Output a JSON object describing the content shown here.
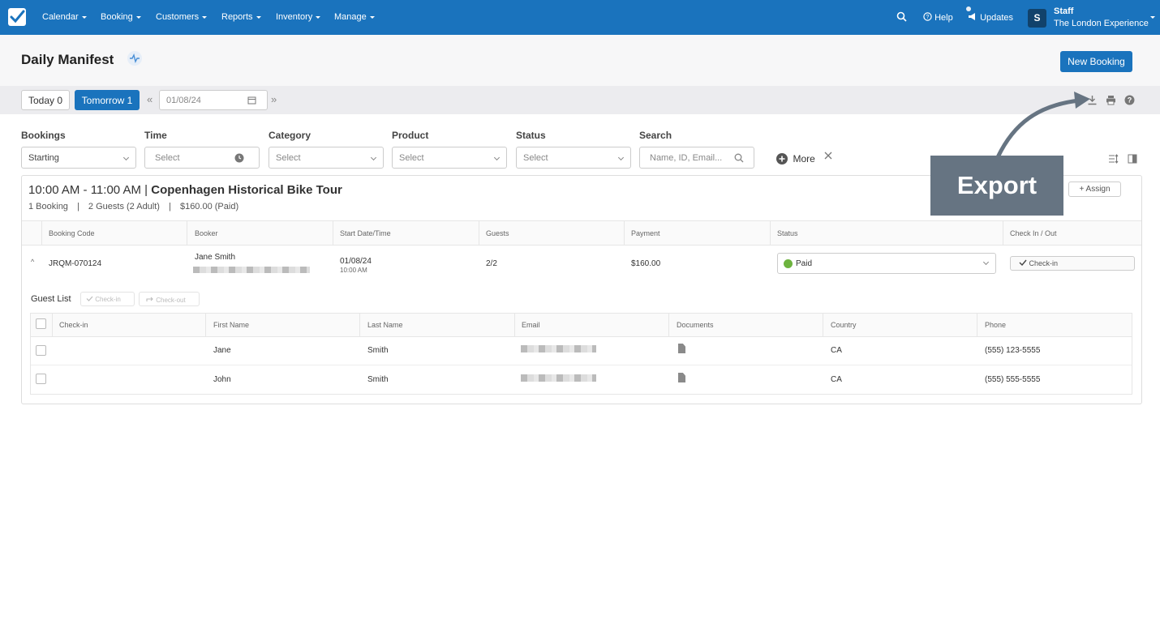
{
  "nav": {
    "menus": [
      "Calendar",
      "Booking",
      "Customers",
      "Reports",
      "Inventory",
      "Manage"
    ],
    "help": "Help",
    "updates": "Updates",
    "user_role": "Staff",
    "company": "The London Experience",
    "avatar_letter": "S"
  },
  "page": {
    "title": "Daily Manifest",
    "new_booking": "New Booking"
  },
  "datebar": {
    "today": "Today 0",
    "tomorrow": "Tomorrow 1",
    "date": "01/08/24"
  },
  "filters": {
    "bookings_label": "Bookings",
    "bookings_value": "Starting",
    "time_label": "Time",
    "time_placeholder": "Select",
    "category_label": "Category",
    "category_placeholder": "Select",
    "product_label": "Product",
    "product_placeholder": "Select",
    "status_label": "Status",
    "status_placeholder": "Select",
    "search_label": "Search",
    "search_placeholder": "Name, ID, Email...",
    "more": "More"
  },
  "tour": {
    "time": "10:00 AM - 11:00 AM",
    "separator": "|",
    "name": "Copenhagen Historical Bike Tour",
    "bookings": "1 Booking",
    "guests": "2 Guests (2 Adult)",
    "total": "$160.00 (Paid)",
    "assign": "Assign"
  },
  "booking_table": {
    "headers": [
      "Booking Code",
      "Booker",
      "Start Date/Time",
      "Guests",
      "Payment",
      "Status",
      "Check In / Out"
    ],
    "row": {
      "code": "JRQM-070124",
      "booker": "Jane Smith",
      "date": "01/08/24",
      "time": "10:00 AM",
      "guests": "2/2",
      "payment": "$160.00",
      "status": "Paid",
      "checkin": "Check-in"
    }
  },
  "guest_list": {
    "title": "Guest List",
    "checkin_btn": "Check-in",
    "checkout_btn": "Check-out",
    "headers": [
      "Check-in",
      "First Name",
      "Last Name",
      "Email",
      "Documents",
      "Country",
      "Phone"
    ],
    "rows": [
      {
        "first": "Jane",
        "last": "Smith",
        "country": "CA",
        "phone": "(555) 123-5555"
      },
      {
        "first": "John",
        "last": "Smith",
        "country": "CA",
        "phone": "(555) 555-5555"
      }
    ]
  },
  "annotation": {
    "label": "Export"
  },
  "colors": {
    "brand": "#1a73bd",
    "paid": "#6db33f",
    "annotation": "#667482"
  }
}
